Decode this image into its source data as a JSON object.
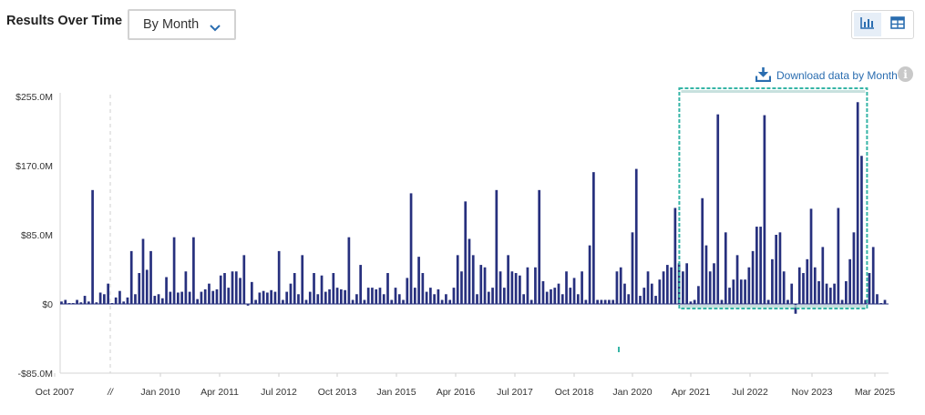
{
  "header": {
    "title": "Results Over Time",
    "period_select": "By Month",
    "download_label": "Download data by Month",
    "info_label": "i"
  },
  "icons": {
    "chevron": "chevron-down-icon",
    "bar_view": "bar-chart-icon",
    "table_view": "table-icon",
    "download": "download-icon",
    "info": "info-icon"
  },
  "colors": {
    "bar": "#27307e",
    "highlight": "#36b5a6",
    "accent": "#2a6db0"
  },
  "chart_data": {
    "type": "bar",
    "y_ticks": [
      {
        "label": "$255.0M",
        "value": 255
      },
      {
        "label": "$170.0M",
        "value": 170
      },
      {
        "label": "$85.0M",
        "value": 85
      },
      {
        "label": "$0",
        "value": 0
      },
      {
        "label": "-$85.0M",
        "value": -85
      }
    ],
    "ylim": [
      -85,
      255
    ],
    "x_ticks": [
      "Oct 2007",
      "//",
      "Jan 2010",
      "Apr 2011",
      "Jul 2012",
      "Oct 2013",
      "Jan 2015",
      "Apr 2016",
      "Jul 2017",
      "Oct 2018",
      "Jan 2020",
      "Apr 2021",
      "Jul 2022",
      "Nov 2023",
      "Mar 2025"
    ],
    "axis_break_label": "//",
    "values": [
      3,
      5,
      0,
      1,
      5,
      2,
      10,
      3,
      140,
      2,
      14,
      12,
      25,
      0,
      8,
      16,
      3,
      8,
      65,
      12,
      38,
      80,
      42,
      65,
      10,
      12,
      7,
      33,
      15,
      82,
      14,
      15,
      40,
      15,
      82,
      6,
      15,
      18,
      25,
      16,
      18,
      35,
      38,
      20,
      40,
      40,
      32,
      60,
      -2,
      27,
      5,
      14,
      16,
      14,
      17,
      15,
      65,
      5,
      15,
      25,
      38,
      12,
      60,
      5,
      15,
      38,
      12,
      35,
      15,
      18,
      38,
      20,
      18,
      17,
      82,
      5,
      12,
      48,
      5,
      20,
      20,
      18,
      20,
      12,
      38,
      5,
      20,
      12,
      5,
      32,
      136,
      20,
      58,
      38,
      15,
      20,
      12,
      18,
      5,
      12,
      5,
      20,
      60,
      40,
      126,
      80,
      60,
      12,
      48,
      45,
      15,
      20,
      140,
      40,
      20,
      60,
      40,
      38,
      35,
      12,
      45,
      5,
      45,
      140,
      28,
      15,
      18,
      20,
      25,
      12,
      40,
      20,
      32,
      12,
      40,
      5,
      72,
      162,
      5,
      5,
      5,
      5,
      5,
      40,
      45,
      25,
      12,
      88,
      166,
      10,
      20,
      40,
      25,
      10,
      30,
      40,
      48,
      45,
      118,
      50,
      40,
      50,
      3,
      5,
      22,
      130,
      72,
      40,
      50,
      233,
      5,
      88,
      20,
      30,
      60,
      30,
      30,
      45,
      65,
      95,
      95,
      232,
      5,
      55,
      85,
      88,
      40,
      5,
      25,
      -12,
      45,
      38,
      55,
      117,
      45,
      28,
      70,
      25,
      20,
      25,
      118,
      5,
      28,
      55,
      88,
      248,
      182,
      5,
      38,
      70,
      12,
      0,
      5
    ],
    "highlight_range_index": [
      160,
      206
    ]
  }
}
